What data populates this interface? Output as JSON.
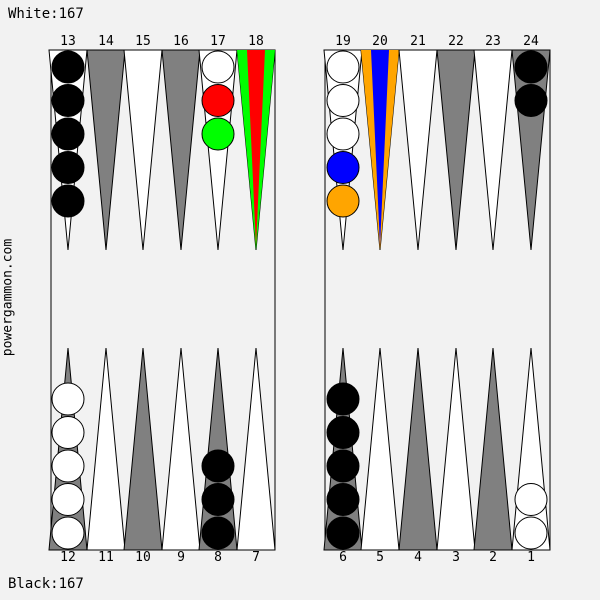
{
  "scores": {
    "white": "White:167",
    "black": "Black:167"
  },
  "watermark": "powergammon.com",
  "top_points": [
    "13",
    "14",
    "15",
    "16",
    "17",
    "18",
    "19",
    "20",
    "21",
    "22",
    "23",
    "24"
  ],
  "bottom_points": [
    "12",
    "11",
    "10",
    "9",
    "8",
    "7",
    "6",
    "5",
    "4",
    "3",
    "2",
    "1"
  ],
  "colors": {
    "board_bg": "#f2f2f2",
    "dark_point": "#808080",
    "light_point": "#ffffff",
    "white_checker": "#ffffff",
    "black_checker": "#000000",
    "highlight_red": "#ff0000",
    "highlight_green": "#00ff00",
    "highlight_blue": "#0000ff",
    "highlight_orange": "#ffa500"
  },
  "highlighted_points": [
    {
      "point": "18",
      "outer": "#00ff00",
      "inner": "#ff0000"
    },
    {
      "point": "20",
      "outer": "#ffa500",
      "inner": "#0000ff"
    }
  ],
  "positions": {
    "13": [
      "black",
      "black",
      "black",
      "black",
      "black"
    ],
    "17": [
      "white",
      "#ff0000",
      "#00ff00"
    ],
    "19": [
      "white",
      "white",
      "white",
      "#0000ff",
      "#ffa500"
    ],
    "24": [
      "black",
      "black"
    ],
    "12": [
      "white",
      "white",
      "white",
      "white",
      "white"
    ],
    "8": [
      "black",
      "black",
      "black"
    ],
    "6": [
      "black",
      "black",
      "black",
      "black",
      "black"
    ],
    "1": [
      "white",
      "white"
    ]
  }
}
